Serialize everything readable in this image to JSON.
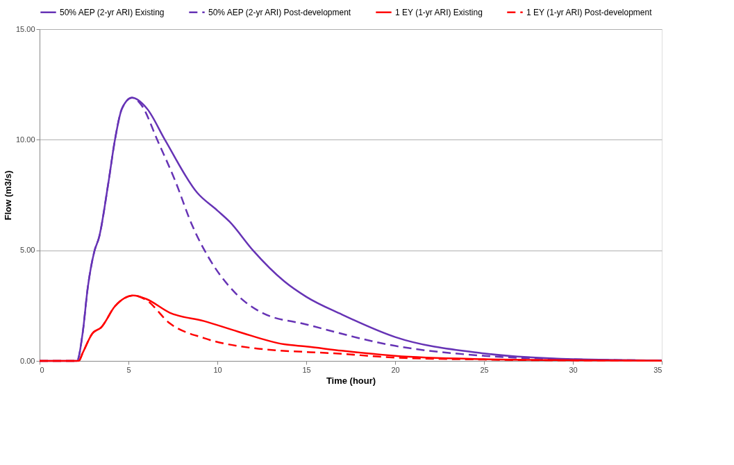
{
  "chart_data": {
    "type": "line",
    "xlabel": "Time (hour)",
    "ylabel": "Flow (m3/s)",
    "xlim": [
      0,
      35
    ],
    "xticks": [
      0,
      5,
      10,
      15,
      20,
      25,
      30,
      35
    ],
    "ylim": [
      0,
      15
    ],
    "yticks": [
      {
        "value": 0,
        "label": "0.00"
      },
      {
        "value": 5,
        "label": "5.00"
      },
      {
        "value": 10,
        "label": "10.00"
      },
      {
        "value": 15,
        "label": "15.00"
      }
    ],
    "grid": "y",
    "legend": "top",
    "marker": "none",
    "series": [
      {
        "name": "50% AEP (2-yr ARI)  Existing",
        "color": "#6633b5",
        "line_style": "solid",
        "x": [
          0,
          2.1,
          2.43,
          2.7,
          3.08,
          3.35,
          3.86,
          4.24,
          4.63,
          5.2,
          6.05,
          7.05,
          8.87,
          10.0,
          10.68,
          12.0,
          13.76,
          15.0,
          17.0,
          20.0,
          25.0,
          30.0,
          35.0
        ],
        "values": [
          0,
          0,
          1.3,
          3.25,
          4.95,
          5.6,
          8.0,
          10.0,
          11.4,
          11.9,
          11.4,
          10.0,
          7.6,
          6.8,
          6.3,
          5.0,
          3.6,
          2.9,
          2.1,
          1.08,
          0.34,
          0.08,
          0.02
        ]
      },
      {
        "name": "50% AEP (2-yr ARI)  Post-development",
        "color": "#6633b5",
        "line_style": "dashed",
        "x": [
          0,
          2.1,
          2.43,
          2.7,
          3.08,
          3.35,
          3.86,
          4.24,
          4.63,
          5.2,
          5.7,
          6.67,
          7.6,
          8.6,
          9.64,
          10.8,
          12.45,
          15.0,
          20.0,
          25.0,
          30.0,
          35.0
        ],
        "values": [
          0,
          0,
          1.3,
          3.25,
          4.95,
          5.6,
          8.0,
          10.0,
          11.4,
          11.9,
          11.6,
          9.9,
          8.2,
          6.1,
          4.5,
          3.25,
          2.2,
          1.65,
          0.68,
          0.23,
          0.07,
          0.02
        ]
      },
      {
        "name": "1 EY (1-yr ARI)  Existing",
        "color": "#ff0000",
        "line_style": "solid",
        "x": [
          0,
          2.2,
          2.43,
          2.97,
          3.47,
          4.24,
          5.28,
          6.0,
          7.32,
          9.25,
          11.18,
          13.76,
          15.0,
          17.0,
          20.0,
          25.0,
          30.0,
          35.0
        ],
        "values": [
          0,
          0,
          0.37,
          1.24,
          1.52,
          2.47,
          2.96,
          2.8,
          2.18,
          1.8,
          1.32,
          0.75,
          0.65,
          0.46,
          0.23,
          0.08,
          0.03,
          0.01
        ]
      },
      {
        "name": "1 EY (1-yr ARI)  Post-development",
        "color": "#ff0000",
        "line_style": "dashed",
        "x": [
          0,
          2.2,
          2.43,
          2.97,
          3.47,
          4.24,
          5.28,
          6.0,
          7.32,
          9.25,
          11.8,
          17.0,
          20.0,
          25.0,
          30.0,
          35.0
        ],
        "values": [
          0,
          0,
          0.37,
          1.24,
          1.52,
          2.47,
          2.96,
          2.75,
          1.7,
          1.03,
          0.6,
          0.32,
          0.15,
          0.06,
          0.02,
          0.01
        ]
      }
    ]
  }
}
